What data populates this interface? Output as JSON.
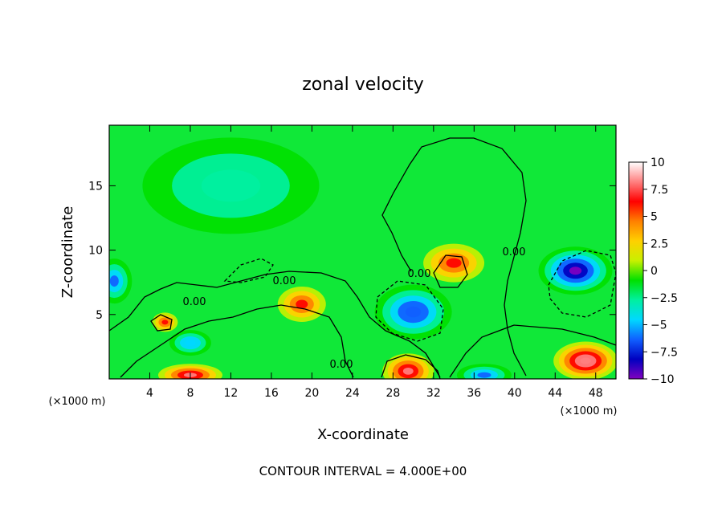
{
  "chart_data": {
    "type": "heatmap",
    "title": "zonal velocity",
    "xlabel": "X-coordinate",
    "ylabel": "Z-coordinate",
    "x_unit": "(×1000 m)",
    "x_range": [
      0,
      50
    ],
    "z_range": [
      0,
      19.7
    ],
    "x_ticks": [
      4,
      8,
      12,
      16,
      20,
      24,
      28,
      32,
      36,
      40,
      44,
      48
    ],
    "y_ticks": [
      5,
      10,
      15
    ],
    "colorbar": {
      "ticks": [
        "10",
        "7.5",
        "5",
        "2.5",
        "0",
        "−2.5",
        "−5",
        "−7.5",
        "−10"
      ],
      "range": [
        -10,
        10
      ]
    },
    "contour_label": "0.00",
    "footer": "CONTOUR INTERVAL = 4.000E+00",
    "features": [
      {
        "x": 34,
        "z": 9,
        "u": 6
      },
      {
        "x": 29.5,
        "z": 0.6,
        "u": 8
      },
      {
        "x": 8,
        "z": 0.3,
        "u": 8
      },
      {
        "x": 19,
        "z": 5.8,
        "u": 6
      },
      {
        "x": 47,
        "z": 1.4,
        "u": 9
      },
      {
        "x": 30,
        "z": 5.2,
        "u": -7
      },
      {
        "x": 46,
        "z": 8.4,
        "u": -10
      },
      {
        "x": 12,
        "z": 15,
        "u": -3
      },
      {
        "x": 0.5,
        "z": 7.6,
        "u": -6
      },
      {
        "x": 5.5,
        "z": 4.4,
        "u": 6
      },
      {
        "x": 37,
        "z": 0.3,
        "u": -6
      },
      {
        "x": 8,
        "z": 2.8,
        "u": -5
      }
    ]
  },
  "colors": {
    "colorbar_stops": [
      "#ffffff",
      "#ff8080",
      "#ff0000",
      "#ff8000",
      "#ffd000",
      "#c8f000",
      "#00e000",
      "#00f0a0",
      "#00d8ff",
      "#1060ff",
      "#0000c0",
      "#8000c0"
    ]
  }
}
